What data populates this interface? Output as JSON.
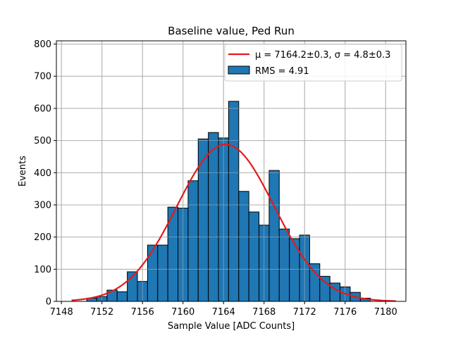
{
  "chart_data": {
    "type": "bar",
    "title": "Baseline value, Ped Run",
    "xlabel": "Sample Value [ADC Counts]",
    "ylabel": "Events",
    "xlim": [
      7147.5,
      7182
    ],
    "ylim": [
      0,
      810
    ],
    "xticks": [
      7148,
      7152,
      7156,
      7160,
      7164,
      7168,
      7172,
      7176,
      7180
    ],
    "yticks": [
      0,
      100,
      200,
      300,
      400,
      500,
      600,
      700,
      800
    ],
    "grid": true,
    "legend_position": "top-right",
    "bin_width": 1,
    "bins": [
      {
        "x": 7151,
        "value": 10
      },
      {
        "x": 7152,
        "value": 15
      },
      {
        "x": 7153,
        "value": 35
      },
      {
        "x": 7154,
        "value": 30
      },
      {
        "x": 7155,
        "value": 92
      },
      {
        "x": 7156,
        "value": 62
      },
      {
        "x": 7157,
        "value": 175
      },
      {
        "x": 7158,
        "value": 175
      },
      {
        "x": 7159,
        "value": 293
      },
      {
        "x": 7160,
        "value": 290
      },
      {
        "x": 7161,
        "value": 375
      },
      {
        "x": 7162,
        "value": 505
      },
      {
        "x": 7163,
        "value": 525
      },
      {
        "x": 7164,
        "value": 508
      },
      {
        "x": 7165,
        "value": 622
      },
      {
        "x": 7166,
        "value": 342
      },
      {
        "x": 7167,
        "value": 278
      },
      {
        "x": 7168,
        "value": 237
      },
      {
        "x": 7169,
        "value": 407
      },
      {
        "x": 7170,
        "value": 225
      },
      {
        "x": 7171,
        "value": 195
      },
      {
        "x": 7172,
        "value": 206
      },
      {
        "x": 7173,
        "value": 117
      },
      {
        "x": 7174,
        "value": 78
      },
      {
        "x": 7175,
        "value": 57
      },
      {
        "x": 7176,
        "value": 45
      },
      {
        "x": 7177,
        "value": 28
      },
      {
        "x": 7178,
        "value": 10
      }
    ],
    "fit": {
      "mu": 7164.2,
      "sigma": 4.8,
      "amplitude": 488,
      "x_range": [
        7149,
        7181
      ],
      "legend_label": "μ = 7164.2±0.3, σ = 4.8±0.3",
      "color": "#e41a1c"
    },
    "hist_legend_label": "RMS = 4.91",
    "bar_color": "#1f77b4",
    "bar_edge_color": "#000000"
  }
}
